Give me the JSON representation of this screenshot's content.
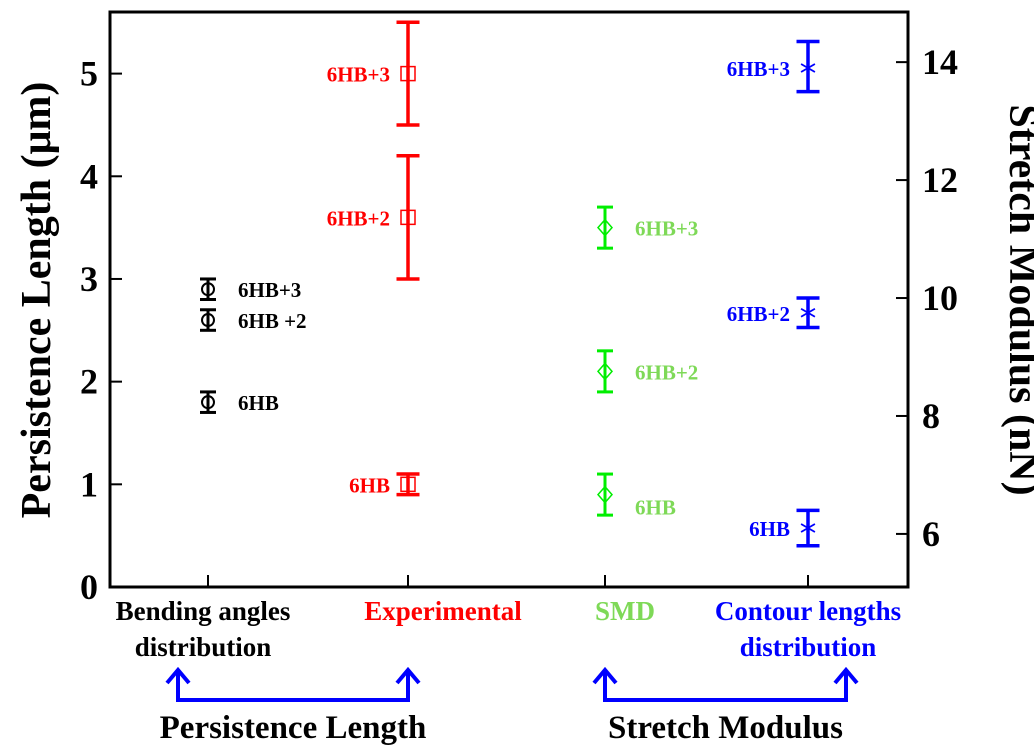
{
  "chart_data": {
    "type": "scatter",
    "left_axis": {
      "label": "Persistence Length (μm)",
      "range": [
        0,
        5.6
      ],
      "ticks": [
        0,
        1,
        2,
        3,
        4,
        5
      ]
    },
    "right_axis": {
      "label": "Stretch Modulus (nN)",
      "range": [
        5.1,
        14.85
      ],
      "ticks": [
        6,
        8,
        10,
        12,
        14
      ]
    },
    "categories": [
      {
        "lines": [
          "Bending angles",
          "distribution"
        ],
        "color": "#000000"
      },
      {
        "lines": [
          "Experimental"
        ],
        "color": "#ff0000"
      },
      {
        "lines": [
          "SMD"
        ],
        "color": "#7ed957"
      },
      {
        "lines": [
          "Contour lengths",
          "distribution"
        ],
        "color": "#0000ff"
      }
    ],
    "groups": [
      {
        "label": "Persistence Length",
        "from": 0,
        "to": 1
      },
      {
        "label": "Stretch Modulus",
        "from": 2,
        "to": 3
      }
    ],
    "series": [
      {
        "category": 0,
        "axis": "left",
        "marker": "circle",
        "color": "#000000",
        "label_color": "#000000",
        "points": [
          {
            "label": "6HB",
            "y": 1.8,
            "low": 1.7,
            "high": 1.9
          },
          {
            "label": "6HB +2",
            "y": 2.6,
            "low": 2.5,
            "high": 2.7
          },
          {
            "label": "6HB+3",
            "y": 2.9,
            "low": 2.8,
            "high": 3.0
          }
        ]
      },
      {
        "category": 1,
        "axis": "left",
        "marker": "square",
        "color": "#ff0000",
        "label_color": "#ff0000",
        "points": [
          {
            "label": "6HB",
            "y": 1.0,
            "low": 0.9,
            "high": 1.1
          },
          {
            "label": "6HB+2",
            "y": 3.6,
            "low": 3.0,
            "high": 4.2
          },
          {
            "label": "6HB+3",
            "y": 5.0,
            "low": 4.5,
            "high": 5.5
          }
        ]
      },
      {
        "category": 2,
        "axis": "left",
        "marker": "diamond",
        "color": "#00ee00",
        "label_color": "#7ed957",
        "points": [
          {
            "label": "6HB",
            "y": 0.9,
            "low": 0.7,
            "high": 1.1
          },
          {
            "label": "6HB+2",
            "y": 2.1,
            "low": 1.9,
            "high": 2.3
          },
          {
            "label": "6HB+3",
            "y": 3.5,
            "low": 3.3,
            "high": 3.7
          }
        ]
      },
      {
        "category": 3,
        "axis": "right",
        "marker": "star",
        "color": "#0000ff",
        "label_color": "#0000ff",
        "points": [
          {
            "label": "6HB",
            "y": 6.1,
            "low": 5.8,
            "high": 6.4
          },
          {
            "label": "6HB+2",
            "y": 9.75,
            "low": 9.5,
            "high": 10.0
          },
          {
            "label": "6HB+3",
            "y": 13.9,
            "low": 13.5,
            "high": 14.35
          }
        ]
      }
    ]
  }
}
